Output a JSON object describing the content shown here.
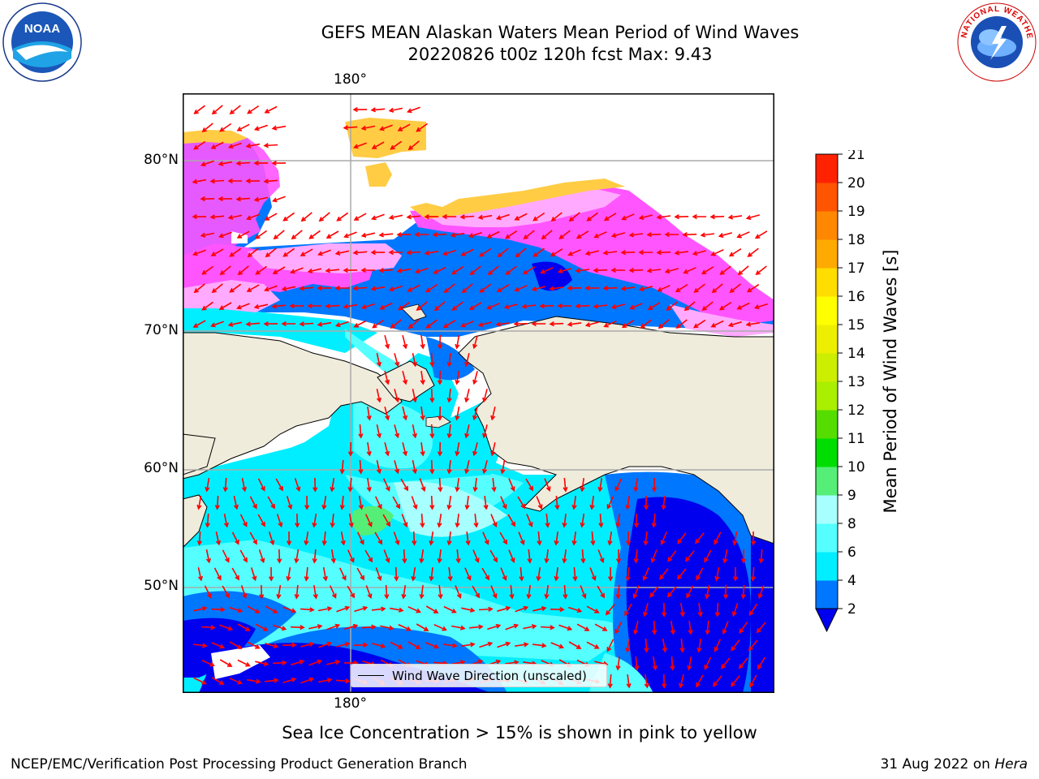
{
  "header": {
    "title": "GEFS MEAN Alaskan Waters Mean Period of Wind Waves",
    "subtitle": "20220826 t00z 120h fcst   Max: 9.43"
  },
  "map": {
    "lon_labels": {
      "top": "180°",
      "bottom": "180°"
    },
    "lat_labels": [
      "80°N",
      "70°N",
      "60°N",
      "50°N"
    ],
    "legend_label": "Wind Wave Direction (unscaled)",
    "colors": {
      "land": "#efecdc",
      "ocean_dark": "#0000ee",
      "ocean_blue": "#0077ff",
      "ocean_cyan": "#00eeff",
      "ocean_light": "#55ffff",
      "ocean_pale": "#a8ffff",
      "ocean_green": "#55ee77",
      "ice_pink": "#ff55ff",
      "ice_light": "#ffaaff",
      "ice_yellow": "#ffcc44",
      "arrow": "#ff0000"
    }
  },
  "colorbar": {
    "label": "Mean Period of Wind Waves [s]",
    "ticks": [
      "2",
      "4",
      "6",
      "8",
      "9",
      "10",
      "11",
      "12",
      "13",
      "14",
      "15",
      "16",
      "17",
      "18",
      "19",
      "20",
      "21"
    ],
    "colors": [
      "#0077ff",
      "#00eeff",
      "#55ffff",
      "#a8ffff",
      "#55ee77",
      "#00dd00",
      "#55dd00",
      "#aaee00",
      "#ccee00",
      "#eeee00",
      "#ffff00",
      "#ffdd00",
      "#ffaa00",
      "#ff8800",
      "#ff5500",
      "#ff2200"
    ],
    "under_color": "#0000ee"
  },
  "notes": {
    "ice": "Sea Ice Concentration > 15% is shown in pink to yellow"
  },
  "footer": {
    "left": "NCEP/EMC/Verification Post Processing Product Generation Branch",
    "right_prefix": "31 Aug 2022 on ",
    "right_host": "Hera"
  },
  "logos": {
    "noaa_text": "NOAA",
    "nws_text": "NATIONAL WEATHER SERVICE"
  }
}
